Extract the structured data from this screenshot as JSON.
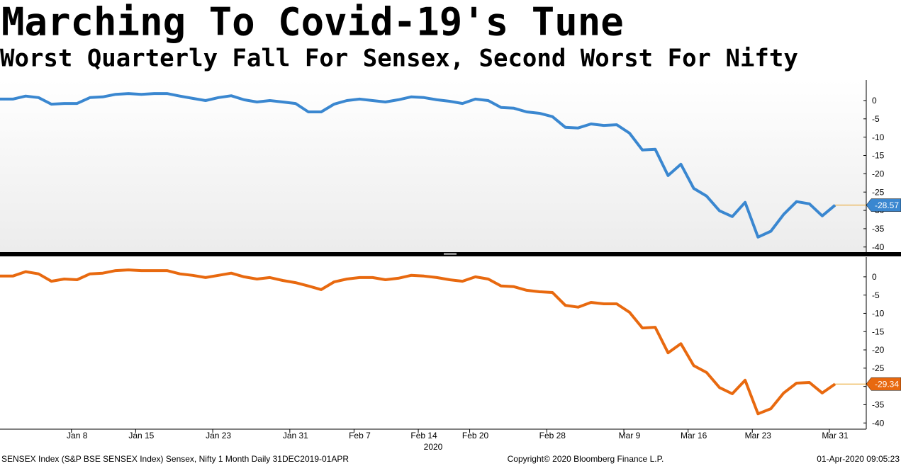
{
  "chart_data": [
    {
      "type": "line",
      "title": "Marching To Covid-19's Tune",
      "subtitle": "Worst Quarterly Fall For Sensex, Second Worst For Nifty",
      "series": [
        {
          "color": "#3a87d0",
          "values": [
            0.4,
            0.4,
            1.2,
            0.8,
            -1,
            -0.8,
            -0.8,
            0.8,
            1,
            1.7,
            1.9,
            1.7,
            1.9,
            1.9,
            1.2,
            0.6,
            0,
            0.8,
            1.3,
            0.2,
            -0.4,
            0,
            -0.4,
            -0.8,
            -3.1,
            -3.1,
            -1,
            0,
            0.4,
            0,
            -0.4,
            0.2,
            1,
            0.8,
            0.2,
            -0.2,
            -0.8,
            0.4,
            0,
            -1.9,
            -2.1,
            -3.1,
            -3.5,
            -4.4,
            -7.3,
            -7.5,
            -6.4,
            -6.8,
            -6.6,
            -8.9,
            -13.5,
            -13.3,
            -20.5,
            -17.4,
            -24,
            -26.1,
            -30.1,
            -31.7,
            -27.8,
            -37.3,
            -35.7,
            -31.1,
            -27.6,
            -28.2,
            -31.5,
            -28.57
          ]
        }
      ],
      "ylim": [
        -41.4,
        5.6
      ],
      "yticks": [
        0,
        -5,
        -10,
        -15,
        -20,
        -25,
        -30,
        -35,
        -40
      ]
    },
    {
      "type": "line",
      "categories": [
        null,
        null,
        null,
        null,
        null,
        null,
        "Jan 8",
        null,
        null,
        null,
        null,
        "Jan 15",
        null,
        null,
        null,
        null,
        null,
        "Jan 23",
        null,
        null,
        null,
        null,
        null,
        "Jan 31",
        null,
        null,
        null,
        null,
        "Feb 7",
        null,
        null,
        null,
        null,
        "Feb 14",
        null,
        null,
        null,
        "Feb 20",
        null,
        null,
        null,
        null,
        null,
        "Feb 28",
        null,
        null,
        null,
        null,
        null,
        "Mar 9",
        null,
        null,
        null,
        null,
        "Mar 16",
        null,
        null,
        null,
        null,
        "Mar 23",
        null,
        null,
        null,
        null,
        null,
        "Mar 31"
      ],
      "x_year_label": "2020",
      "series": [
        {
          "color": "#e8690f",
          "values": [
            0.2,
            0.2,
            1.4,
            0.8,
            -1.2,
            -0.6,
            -0.8,
            0.8,
            1,
            1.7,
            1.9,
            1.7,
            1.7,
            1.7,
            0.8,
            0.4,
            -0.2,
            0.4,
            1,
            0,
            -0.6,
            -0.2,
            -1,
            -1.6,
            -2.5,
            -3.5,
            -1.4,
            -0.6,
            -0.2,
            -0.2,
            -0.8,
            -0.4,
            0.4,
            0.2,
            -0.2,
            -0.8,
            -1.2,
            0,
            -0.6,
            -2.5,
            -2.7,
            -3.7,
            -4.1,
            -4.3,
            -7.8,
            -8.3,
            -7,
            -7.4,
            -7.4,
            -9.7,
            -14,
            -13.8,
            -20.8,
            -18.3,
            -24.3,
            -26.2,
            -30.3,
            -32,
            -28.3,
            -37.5,
            -36.1,
            -31.8,
            -29.1,
            -28.9,
            -31.8,
            -29.34
          ]
        }
      ],
      "ylim": [
        -41.7,
        5.4
      ],
      "yticks": [
        0,
        -5,
        -10,
        -15,
        -20,
        -25,
        -30,
        -35,
        -40
      ]
    }
  ],
  "footer": {
    "left": "SENSEX Index (S&P BSE SENSEX Index) Sensex, Nifty 1 Month  Daily 31DEC2019-01APR",
    "center": "Copyright© 2020 Bloomberg Finance L.P.",
    "right": "01-Apr-2020 09:05:23"
  }
}
